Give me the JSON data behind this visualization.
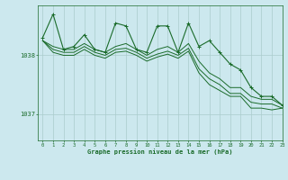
{
  "title": "Graphe pression niveau de la mer (hPa)",
  "bg_color": "#cce8ee",
  "grid_color": "#aacccc",
  "line_color": "#1a6b2a",
  "xlim": [
    -0.5,
    23
  ],
  "ylim": [
    1036.55,
    1038.85
  ],
  "yticks": [
    1037,
    1038
  ],
  "xticks": [
    0,
    1,
    2,
    3,
    4,
    5,
    6,
    7,
    8,
    9,
    10,
    11,
    12,
    13,
    14,
    15,
    16,
    17,
    18,
    19,
    20,
    21,
    22,
    23
  ],
  "series": [
    [
      1038.3,
      1038.7,
      1038.1,
      1038.15,
      1038.35,
      1038.1,
      1038.05,
      1038.55,
      1038.5,
      1038.1,
      1038.05,
      1038.5,
      1038.5,
      1038.05,
      1038.55,
      1038.15,
      1038.25,
      1038.05,
      1037.85,
      1037.75,
      1037.45,
      1037.3,
      1037.3,
      1037.15
    ],
    [
      1038.25,
      1038.15,
      1038.1,
      1038.1,
      1038.2,
      1038.1,
      1038.05,
      1038.15,
      1038.2,
      1038.1,
      1038.0,
      1038.1,
      1038.15,
      1038.05,
      1038.2,
      1037.9,
      1037.7,
      1037.6,
      1037.45,
      1037.45,
      1037.3,
      1037.25,
      1037.25,
      1037.15
    ],
    [
      1038.25,
      1038.1,
      1038.05,
      1038.05,
      1038.15,
      1038.05,
      1038.0,
      1038.1,
      1038.12,
      1038.05,
      1037.95,
      1038.02,
      1038.07,
      1038.0,
      1038.12,
      1037.77,
      1037.6,
      1037.5,
      1037.35,
      1037.35,
      1037.2,
      1037.17,
      1037.17,
      1037.1
    ],
    [
      1038.25,
      1038.05,
      1038.0,
      1038.0,
      1038.1,
      1038.0,
      1037.95,
      1038.05,
      1038.07,
      1038.0,
      1037.9,
      1037.97,
      1038.02,
      1037.95,
      1038.07,
      1037.7,
      1037.5,
      1037.4,
      1037.3,
      1037.3,
      1037.1,
      1037.1,
      1037.07,
      1037.1
    ]
  ]
}
